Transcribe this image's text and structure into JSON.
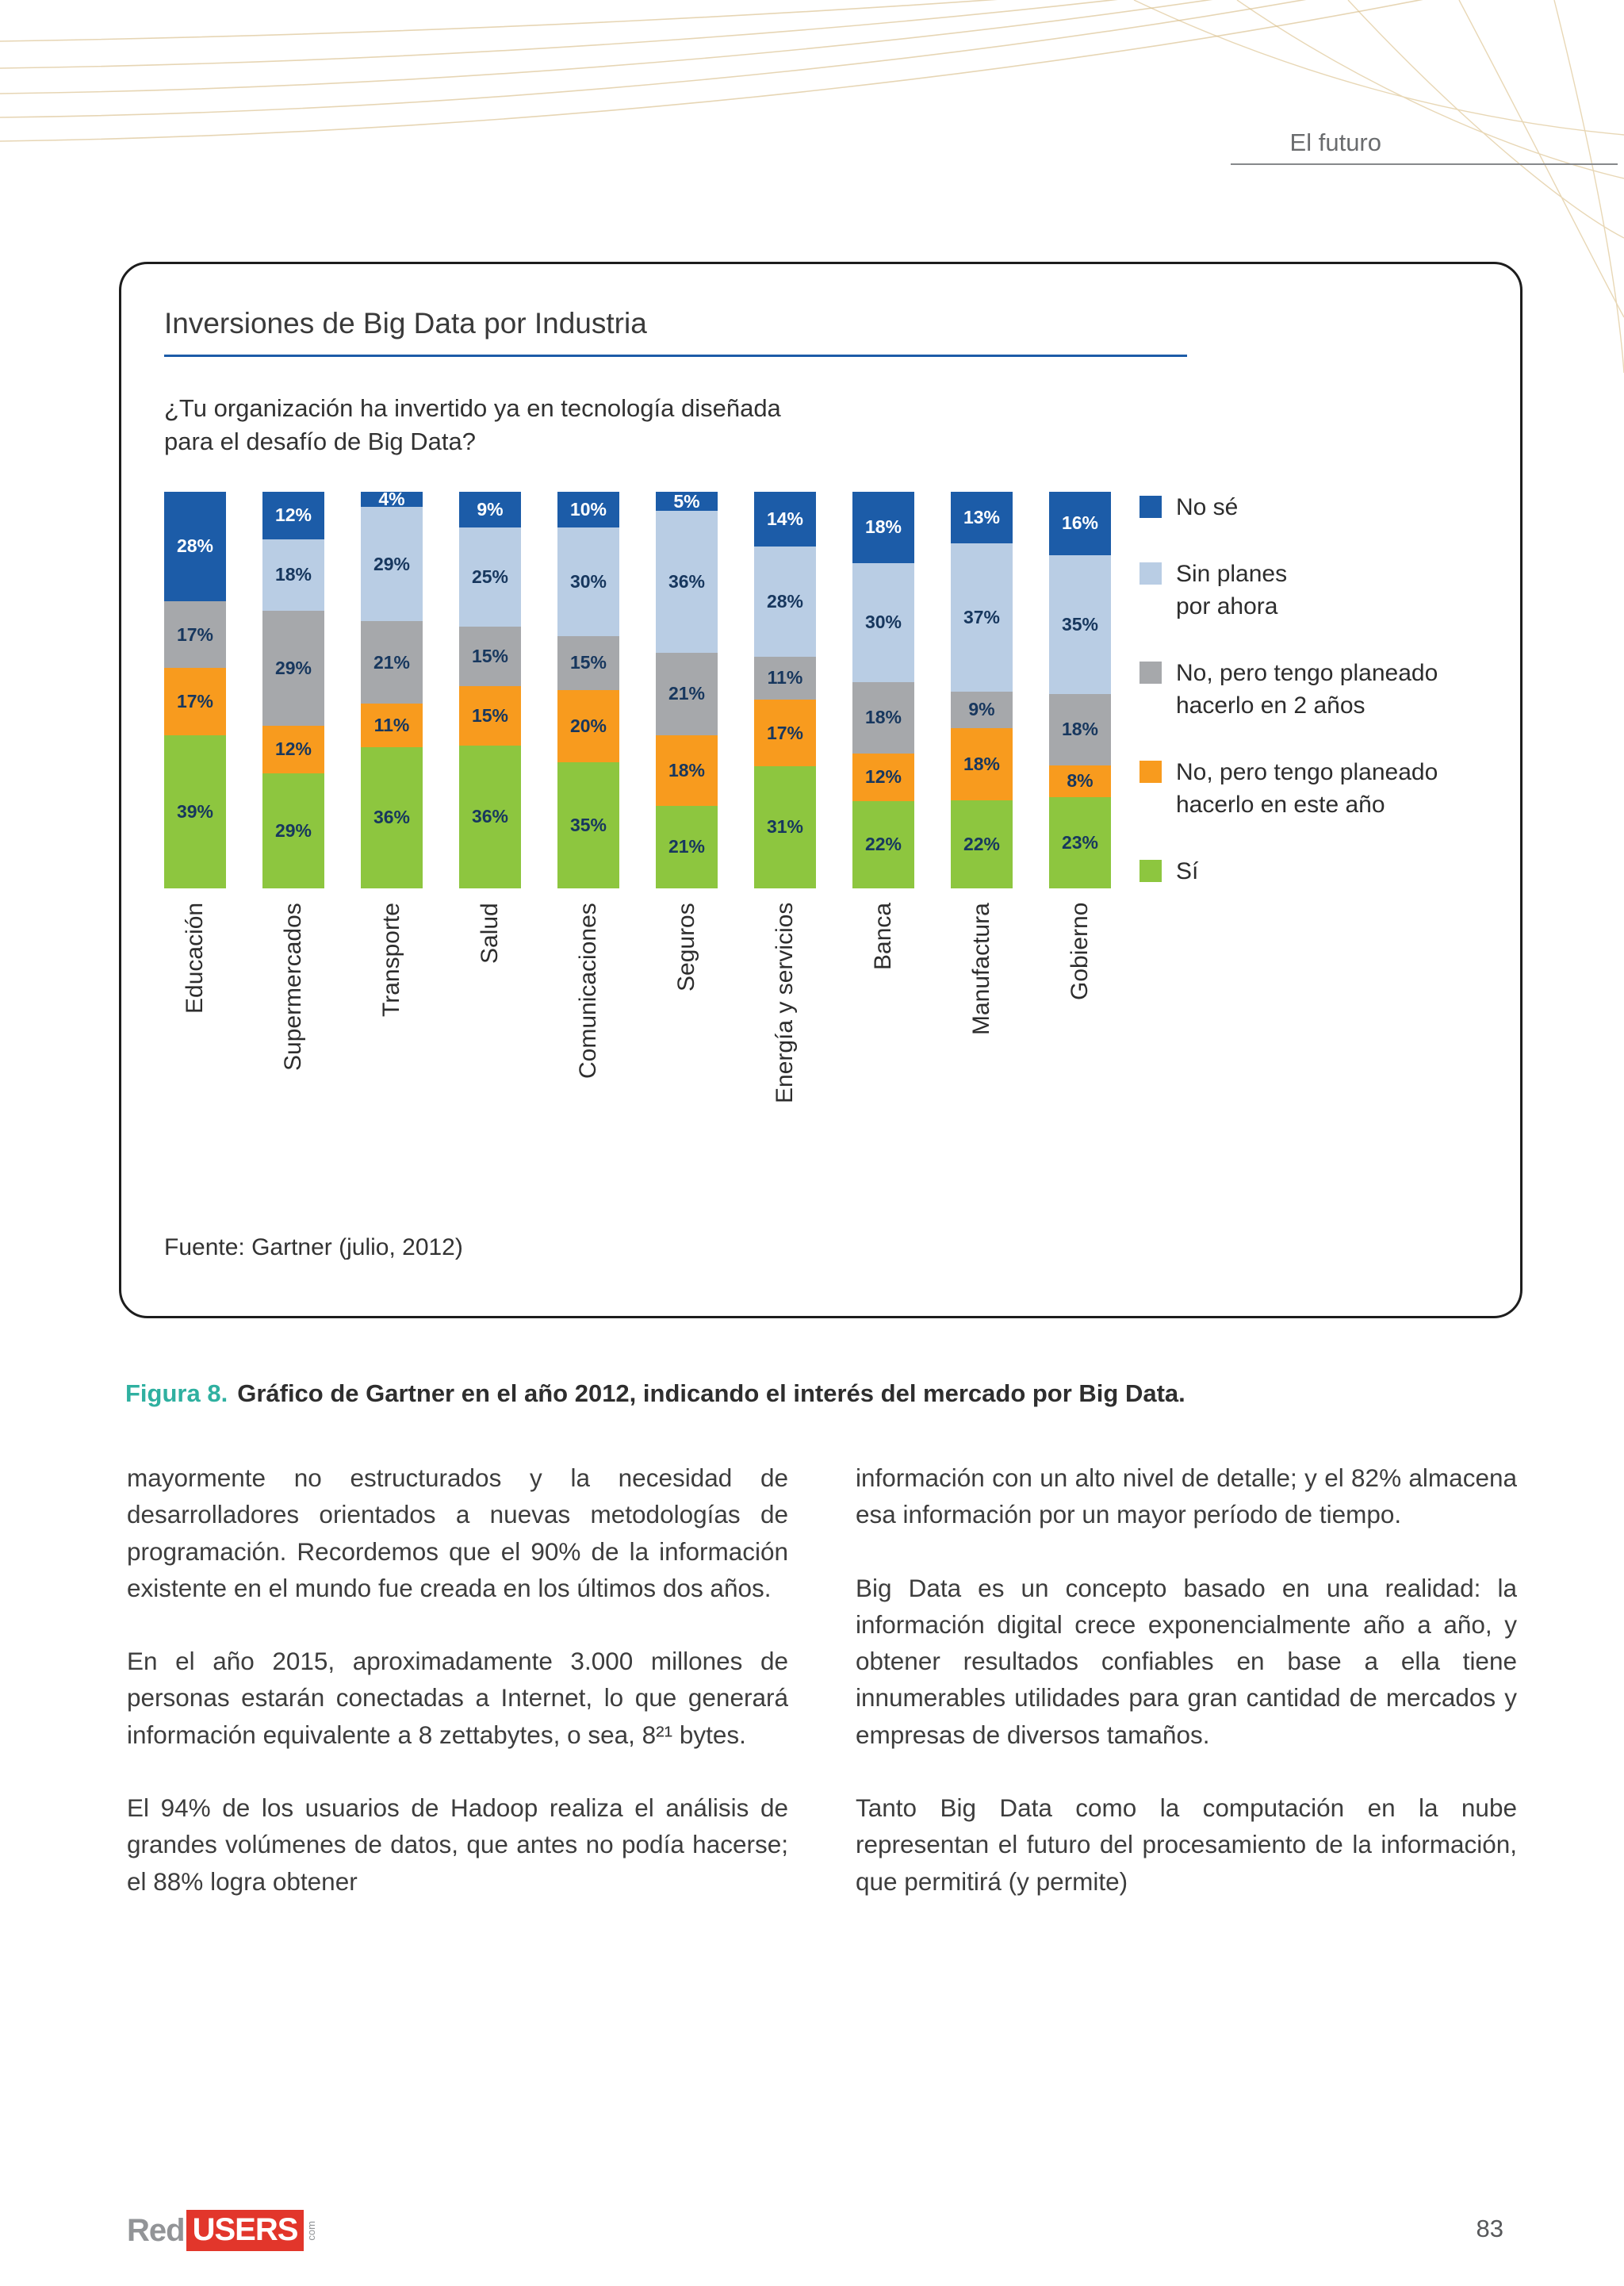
{
  "header": {
    "label": "El futuro"
  },
  "chart_data": {
    "type": "bar",
    "stacked": true,
    "title": "Inversiones de Big Data por Industria",
    "question": "¿Tu organización ha invertido ya en tecnología diseñada\npara el desafío de Big Data?",
    "source": "Fuente: Gartner (julio, 2012)",
    "categories": [
      "Educación",
      "Supermercados",
      "Transporte",
      "Salud",
      "Comunicaciones",
      "Seguros",
      "Energía y servicios",
      "Banca",
      "Manufactura",
      "Gobierno"
    ],
    "series": [
      {
        "name": "No sé",
        "color": "#1c5ca8",
        "values": [
          28,
          12,
          4,
          9,
          10,
          5,
          14,
          18,
          13,
          16
        ]
      },
      {
        "name": "Sin planes\npor ahora",
        "color": "#b9cde4",
        "values": [
          0,
          18,
          29,
          25,
          30,
          36,
          28,
          30,
          37,
          35
        ]
      },
      {
        "name": "No, pero tengo planeado\nhacerlo en 2 años",
        "color": "#a6a8ab",
        "values": [
          17,
          29,
          21,
          15,
          15,
          21,
          11,
          18,
          9,
          18
        ]
      },
      {
        "name": "No, pero tengo planeado\nhacerlo en este año",
        "color": "#f89b1e",
        "values": [
          17,
          12,
          11,
          15,
          20,
          18,
          17,
          12,
          18,
          8
        ]
      },
      {
        "name": "Sí",
        "color": "#8dc63f",
        "values": [
          39,
          29,
          36,
          36,
          35,
          21,
          31,
          22,
          22,
          23
        ]
      }
    ],
    "ylim": [
      0,
      100
    ],
    "legend_position": "right",
    "value_suffix": "%"
  },
  "caption": {
    "prefix": "Figura 8.",
    "text": "Gráfico de Gartner en el año 2012, indicando el interés del mercado por Big Data."
  },
  "body": {
    "left": [
      "mayormente no estructurados y la necesidad de desarrolladores orientados a nuevas metodologías de programación. Recordemos que el 90% de la información existente en el mundo fue creada en los últimos dos años.",
      "En el año 2015, aproximadamente 3.000 millones de personas estarán conectadas a Internet, lo que generará información equivalente a 8 zettabytes, o sea, 8²¹ bytes.",
      "El 94% de los usuarios de Hadoop realiza el análisis de grandes volúmenes de datos, que antes no podía hacerse; el 88% logra obtener"
    ],
    "right": [
      "información con un alto nivel de detalle; y el 82% almacena esa información por un mayor período de tiempo.",
      "Big Data es un concepto basado en una realidad: la información digital crece exponencialmente año a año, y obtener resultados confiables en base a ella tiene innumerables utilidades para gran cantidad de mercados y empresas de diversos tamaños.",
      "Tanto Big Data como la computación en la nube representan el futuro del procesamiento de la información, que permitirá (y permite)"
    ]
  },
  "footer": {
    "logo_part1": "Red",
    "logo_part2": "USERS",
    "logo_suffix": "com",
    "page_number": "83"
  }
}
